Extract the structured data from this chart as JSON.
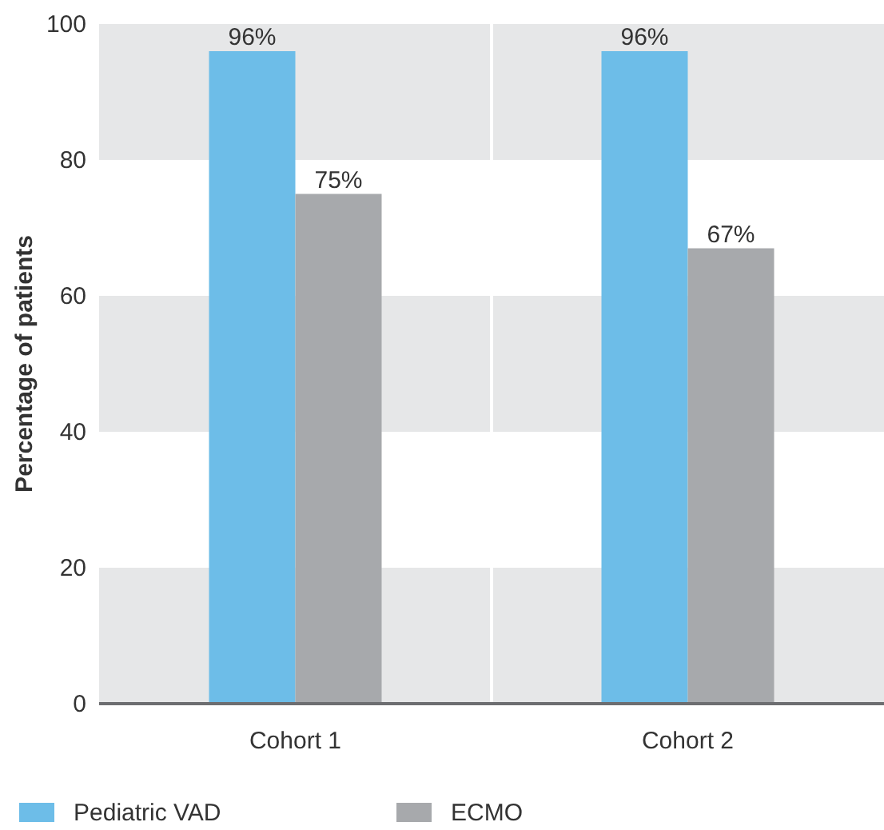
{
  "chart_data": {
    "type": "bar",
    "ylabel": "Percentage of patients",
    "categories": [
      "Cohort 1",
      "Cohort 2"
    ],
    "series": [
      {
        "name": "Pediatric VAD",
        "color": "#6dbde8",
        "values": [
          96,
          96
        ],
        "value_labels": [
          "96%",
          "96%"
        ]
      },
      {
        "name": "ECMO",
        "color": "#a7a9ac",
        "values": [
          75,
          67
        ],
        "value_labels": [
          "75%",
          "67%"
        ]
      }
    ],
    "bands": [
      {
        "axis": "y",
        "from": 0,
        "to": 20,
        "color": "#e6e7e8"
      },
      {
        "axis": "y",
        "from": 40,
        "to": 60,
        "color": "#e6e7e8"
      },
      {
        "axis": "y",
        "from": 80,
        "to": 100,
        "color": "#e6e7e8"
      }
    ],
    "ylim": [
      0,
      100
    ],
    "yticks": [
      0,
      20,
      40,
      60,
      80,
      100
    ],
    "legend": "bottom left"
  }
}
